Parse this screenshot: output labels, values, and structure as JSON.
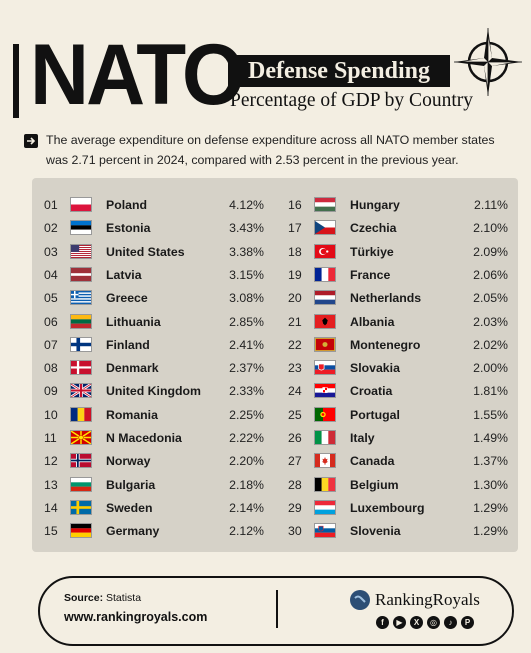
{
  "header": {
    "title": "NATO",
    "title_box": "Defense Spending",
    "subtitle": "Percentage of GDP by Country"
  },
  "intro": {
    "text": "The average expenditure on defense expenditure across all NATO member states was 2.71 percent in 2024, compared with 2.53 percent in the previous year."
  },
  "chart_data": {
    "type": "table",
    "columns": [
      "rank",
      "country",
      "percent_of_gdp"
    ],
    "rows": [
      {
        "rank": "01",
        "country": "Poland",
        "value": "4.12%",
        "flag": "poland"
      },
      {
        "rank": "02",
        "country": "Estonia",
        "value": "3.43%",
        "flag": "estonia"
      },
      {
        "rank": "03",
        "country": "United States",
        "value": "3.38%",
        "flag": "usa"
      },
      {
        "rank": "04",
        "country": "Latvia",
        "value": "3.15%",
        "flag": "latvia"
      },
      {
        "rank": "05",
        "country": "Greece",
        "value": "3.08%",
        "flag": "greece"
      },
      {
        "rank": "06",
        "country": "Lithuania",
        "value": "2.85%",
        "flag": "lithuania"
      },
      {
        "rank": "07",
        "country": "Finland",
        "value": "2.41%",
        "flag": "finland"
      },
      {
        "rank": "08",
        "country": "Denmark",
        "value": "2.37%",
        "flag": "denmark"
      },
      {
        "rank": "09",
        "country": "United Kingdom",
        "value": "2.33%",
        "flag": "uk"
      },
      {
        "rank": "10",
        "country": "Romania",
        "value": "2.25%",
        "flag": "romania"
      },
      {
        "rank": "11",
        "country": "N Macedonia",
        "value": "2.22%",
        "flag": "macedonia"
      },
      {
        "rank": "12",
        "country": "Norway",
        "value": "2.20%",
        "flag": "norway"
      },
      {
        "rank": "13",
        "country": "Bulgaria",
        "value": "2.18%",
        "flag": "bulgaria"
      },
      {
        "rank": "14",
        "country": "Sweden",
        "value": "2.14%",
        "flag": "sweden"
      },
      {
        "rank": "15",
        "country": "Germany",
        "value": "2.12%",
        "flag": "germany"
      },
      {
        "rank": "16",
        "country": "Hungary",
        "value": "2.11%",
        "flag": "hungary"
      },
      {
        "rank": "17",
        "country": "Czechia",
        "value": "2.10%",
        "flag": "czechia"
      },
      {
        "rank": "18",
        "country": "Türkiye",
        "value": "2.09%",
        "flag": "turkey"
      },
      {
        "rank": "19",
        "country": "France",
        "value": "2.06%",
        "flag": "france"
      },
      {
        "rank": "20",
        "country": "Netherlands",
        "value": "2.05%",
        "flag": "netherlands"
      },
      {
        "rank": "21",
        "country": "Albania",
        "value": "2.03%",
        "flag": "albania"
      },
      {
        "rank": "22",
        "country": "Montenegro",
        "value": "2.02%",
        "flag": "montenegro"
      },
      {
        "rank": "23",
        "country": "Slovakia",
        "value": "2.00%",
        "flag": "slovakia"
      },
      {
        "rank": "24",
        "country": "Croatia",
        "value": "1.81%",
        "flag": "croatia"
      },
      {
        "rank": "25",
        "country": "Portugal",
        "value": "1.55%",
        "flag": "portugal"
      },
      {
        "rank": "26",
        "country": "Italy",
        "value": "1.49%",
        "flag": "italy"
      },
      {
        "rank": "27",
        "country": "Canada",
        "value": "1.37%",
        "flag": "canada"
      },
      {
        "rank": "28",
        "country": "Belgium",
        "value": "1.30%",
        "flag": "belgium"
      },
      {
        "rank": "29",
        "country": "Luxembourg",
        "value": "1.29%",
        "flag": "luxembourg"
      },
      {
        "rank": "30",
        "country": "Slovenia",
        "value": "1.29%",
        "flag": "slovenia"
      }
    ]
  },
  "footer": {
    "source_label": "Source:",
    "source_value": "Statista",
    "url": "www.rankingroyals.com",
    "brand": "RankingRoyals",
    "social_icons": [
      "facebook-icon",
      "youtube-icon",
      "x-icon",
      "instagram-icon",
      "tiktok-icon",
      "pinterest-icon"
    ]
  },
  "colors": {
    "background": "#f3eee2",
    "table_background": "#d6d2c8",
    "ink": "#111111"
  }
}
